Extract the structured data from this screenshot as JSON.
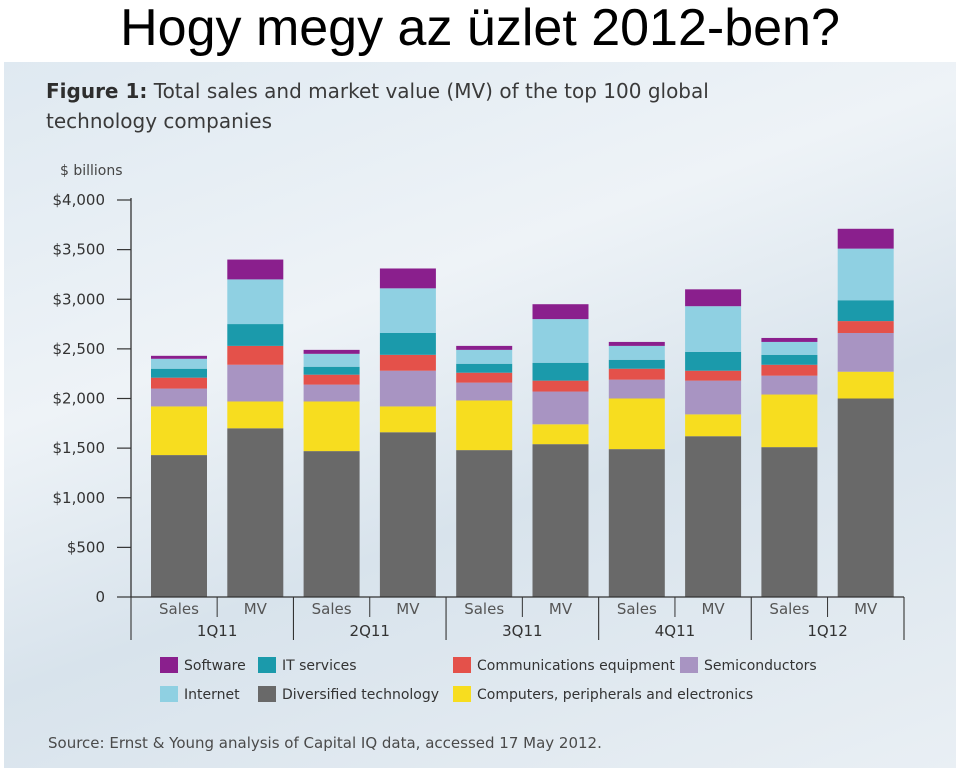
{
  "slide": {
    "title": "Hogy megy az üzlet 2012-ben?"
  },
  "figure": {
    "label": "Figure 1:",
    "caption": "Total sales and market value (MV) of the top 100 global technology companies",
    "source": "Source: Ernst & Young analysis of Capital IQ data, accessed 17 May 2012."
  },
  "chart_data": {
    "type": "bar",
    "stacked": true,
    "title": "Figure 1: Total sales and market value (MV) of the top 100 global technology companies",
    "ylabel": "$ billions",
    "ylim": [
      0,
      4000
    ],
    "yticks": [
      0,
      500,
      1000,
      1500,
      2000,
      2500,
      3000,
      3500,
      4000
    ],
    "ytick_labels": [
      "0",
      "$500",
      "$1,000",
      "$1,500",
      "$2,000",
      "$2,500",
      "$3,000",
      "$3,500",
      "$4,000"
    ],
    "groups": [
      "1Q11",
      "2Q11",
      "3Q11",
      "4Q11",
      "1Q12"
    ],
    "categories": [
      "Sales",
      "MV",
      "Sales",
      "MV",
      "Sales",
      "MV",
      "Sales",
      "MV",
      "Sales",
      "MV"
    ],
    "series": [
      {
        "name": "Diversified technology",
        "color": "#696969",
        "values": [
          1430,
          1700,
          1470,
          1660,
          1480,
          1540,
          1490,
          1620,
          1510,
          2000
        ]
      },
      {
        "name": "Computers, peripherals and electronics",
        "color": "#f7dd1f",
        "values": [
          490,
          270,
          500,
          260,
          500,
          200,
          510,
          220,
          530,
          270
        ]
      },
      {
        "name": "Semiconductors",
        "color": "#a894c2",
        "values": [
          180,
          370,
          170,
          360,
          180,
          330,
          190,
          340,
          190,
          390
        ]
      },
      {
        "name": "Communications equipment",
        "color": "#e4514a",
        "values": [
          110,
          190,
          100,
          160,
          100,
          110,
          110,
          100,
          110,
          120
        ]
      },
      {
        "name": "IT services",
        "color": "#1b9aab",
        "values": [
          90,
          220,
          80,
          220,
          90,
          180,
          90,
          190,
          100,
          210
        ]
      },
      {
        "name": "Internet",
        "color": "#8fd0e2",
        "values": [
          100,
          450,
          130,
          450,
          140,
          440,
          140,
          460,
          130,
          520
        ]
      },
      {
        "name": "Software",
        "color": "#8a1f8d",
        "values": [
          30,
          200,
          40,
          200,
          40,
          150,
          40,
          170,
          40,
          200
        ]
      }
    ],
    "legend": {
      "placement": "bottom",
      "order": [
        "Software",
        "IT services",
        "Communications equipment",
        "Semiconductors",
        "Internet",
        "Diversified technology",
        "Computers, peripherals and electronics"
      ]
    },
    "grid": false
  }
}
